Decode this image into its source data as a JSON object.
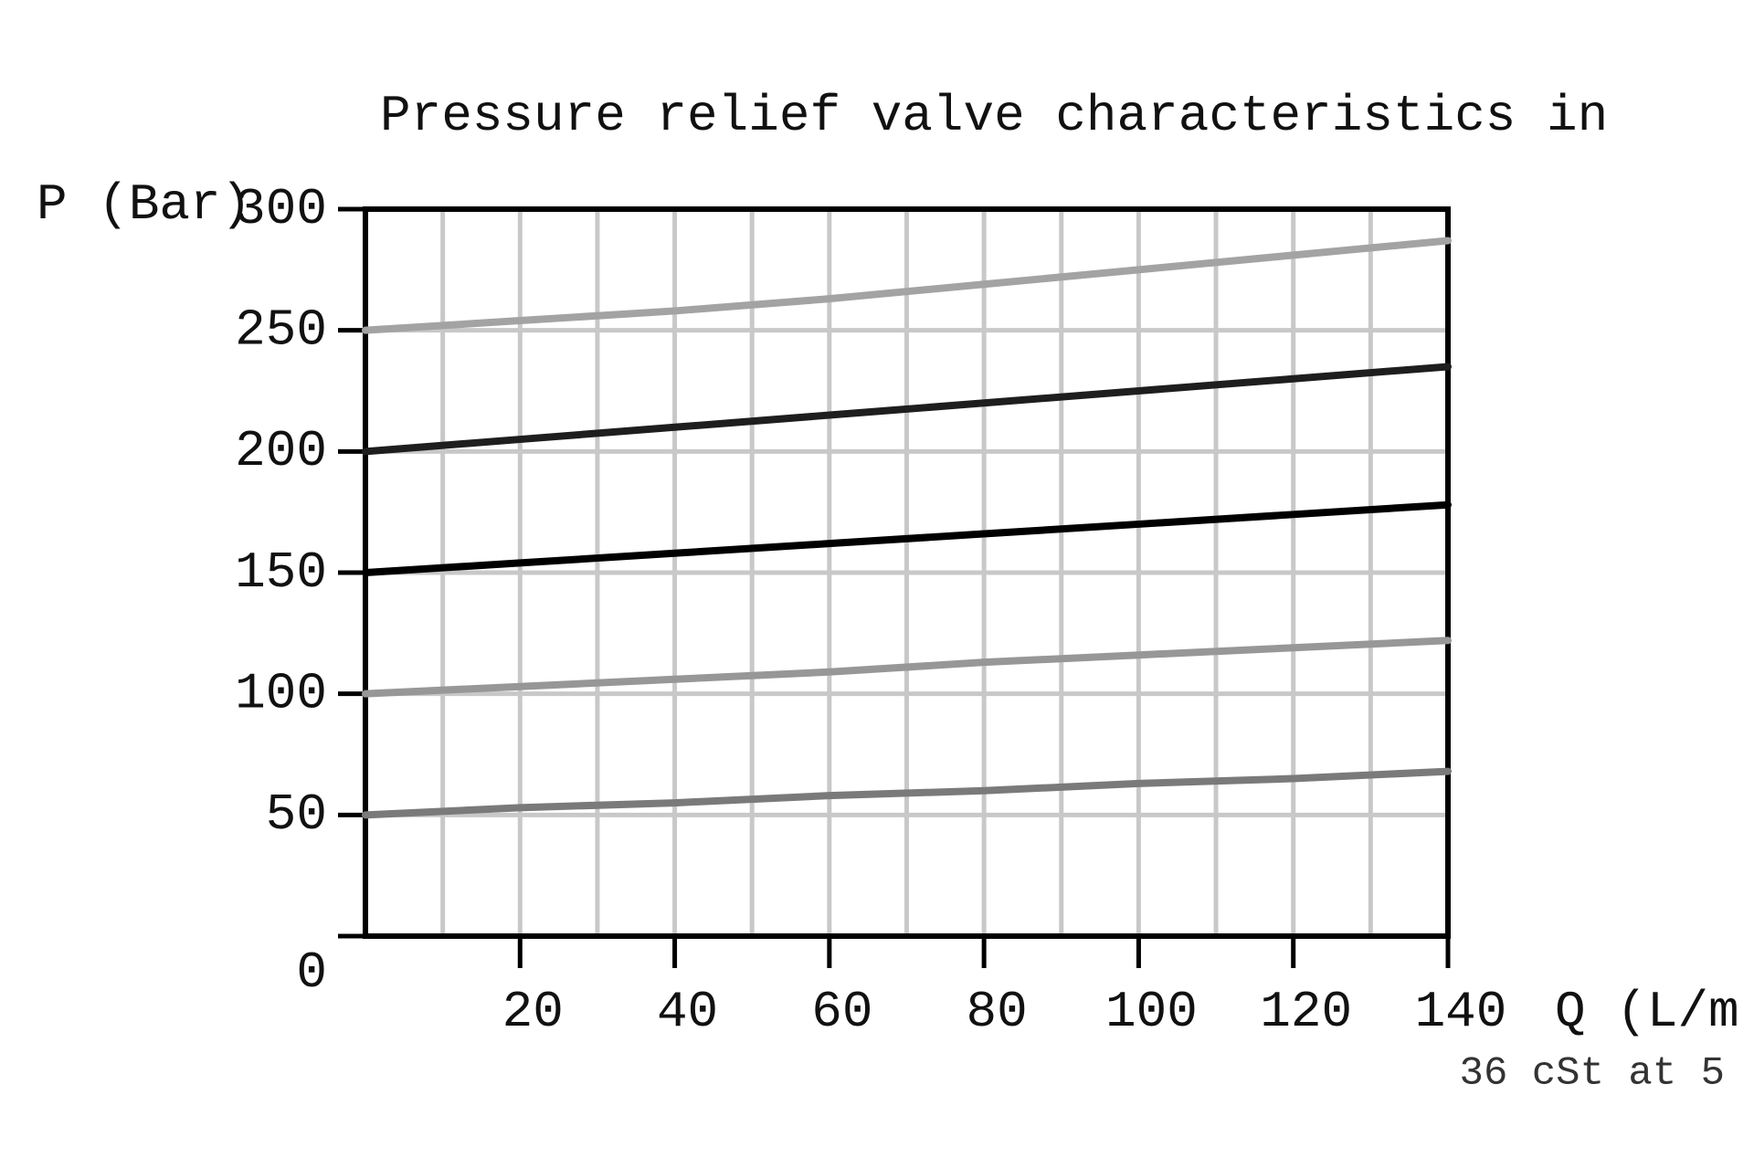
{
  "chart_data": {
    "type": "line",
    "title": "Pressure relief valve characteristics in",
    "y_label": "P (Bar)",
    "x_label": "Q (L/m",
    "note": "36 cSt at 5",
    "x": [
      0,
      20,
      40,
      60,
      80,
      100,
      120,
      140
    ],
    "series": [
      {
        "color": "#a3a3a3",
        "values": [
          250,
          254,
          258,
          263,
          269,
          275,
          281,
          287
        ]
      },
      {
        "color": "#1e1e1e",
        "values": [
          200,
          205,
          210,
          215,
          220,
          225,
          230,
          235
        ]
      },
      {
        "color": "#000000",
        "values": [
          150,
          154,
          158,
          162,
          166,
          170,
          174,
          178
        ]
      },
      {
        "color": "#979797",
        "values": [
          100,
          103,
          106,
          109,
          113,
          116,
          119,
          122
        ]
      },
      {
        "color": "#7a7a7a",
        "values": [
          50,
          53,
          55,
          58,
          60,
          63,
          65,
          68
        ]
      }
    ],
    "xlim": [
      0,
      140
    ],
    "ylim": [
      0,
      300
    ],
    "xticks": [
      20,
      40,
      60,
      80,
      100,
      120,
      140
    ],
    "yticks": [
      0,
      50,
      100,
      150,
      200,
      250,
      300
    ],
    "xgrid": [
      10,
      20,
      30,
      40,
      50,
      60,
      70,
      80,
      90,
      100,
      110,
      120,
      130
    ],
    "grid": true
  }
}
